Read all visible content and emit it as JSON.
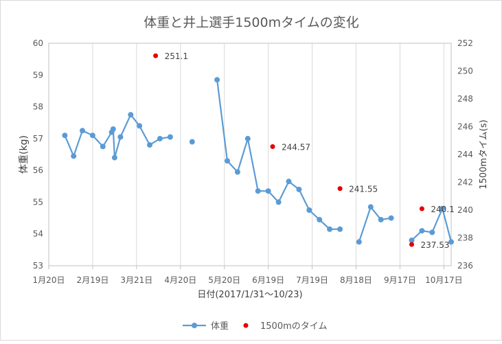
{
  "chart_data": {
    "type": "line",
    "title": "体重と井上選手1500mタイムの変化",
    "xlabel": "日付(2017/1/31～10/23)",
    "ylabel_left": "体重(kg)",
    "ylabel_right": "1500mタイム(s)",
    "x_ticks": [
      "1月20日",
      "2月19日",
      "3月21日",
      "4月20日",
      "5月20日",
      "6月19日",
      "7月19日",
      "8月18日",
      "9月17日",
      "10月17日"
    ],
    "x_tick_dates": [
      "2017-01-20",
      "2017-02-19",
      "2017-03-21",
      "2017-04-20",
      "2017-05-20",
      "2017-06-19",
      "2017-07-19",
      "2017-08-18",
      "2017-09-17",
      "2017-10-17"
    ],
    "xlim": [
      "2017-01-20",
      "2017-10-22"
    ],
    "ylim_left": [
      53,
      60
    ],
    "yticks_left": [
      "53",
      "54",
      "55",
      "56",
      "57",
      "58",
      "59",
      "60"
    ],
    "ylim_right": [
      236,
      252
    ],
    "yticks_right": [
      "236",
      "238",
      "240",
      "242",
      "244",
      "246",
      "248",
      "250",
      "252"
    ],
    "grid": "vertical",
    "legend_position": "bottom",
    "series": [
      {
        "name": "体重",
        "axis": "left",
        "color": "#5b9bd5",
        "style": "line-with-markers",
        "segments": [
          [
            {
              "x": "2017-01-31",
              "y": 57.1
            },
            {
              "x": "2017-02-06",
              "y": 56.45
            },
            {
              "x": "2017-02-12",
              "y": 57.25
            },
            {
              "x": "2017-02-19",
              "y": 57.1
            },
            {
              "x": "2017-02-26",
              "y": 56.75
            },
            {
              "x": "2017-03-04",
              "y": 57.2
            },
            {
              "x": "2017-03-05",
              "y": 57.3
            },
            {
              "x": "2017-03-06",
              "y": 56.4
            },
            {
              "x": "2017-03-10",
              "y": 57.05
            },
            {
              "x": "2017-03-17",
              "y": 57.75
            },
            {
              "x": "2017-03-23",
              "y": 57.4
            },
            {
              "x": "2017-03-30",
              "y": 56.8
            },
            {
              "x": "2017-04-06",
              "y": 57.0
            },
            {
              "x": "2017-04-13",
              "y": 57.05
            }
          ],
          [
            {
              "x": "2017-04-28",
              "y": 56.9
            }
          ],
          [
            {
              "x": "2017-05-15",
              "y": 58.85
            },
            {
              "x": "2017-05-22",
              "y": 56.3
            },
            {
              "x": "2017-05-29",
              "y": 55.95
            },
            {
              "x": "2017-06-05",
              "y": 57.0
            },
            {
              "x": "2017-06-12",
              "y": 55.35
            },
            {
              "x": "2017-06-19",
              "y": 55.35
            },
            {
              "x": "2017-06-26",
              "y": 55.0
            },
            {
              "x": "2017-07-03",
              "y": 55.65
            },
            {
              "x": "2017-07-10",
              "y": 55.4
            },
            {
              "x": "2017-07-17",
              "y": 54.75
            },
            {
              "x": "2017-07-24",
              "y": 54.45
            },
            {
              "x": "2017-07-31",
              "y": 54.15
            },
            {
              "x": "2017-08-07",
              "y": 54.15
            }
          ],
          [
            {
              "x": "2017-08-20",
              "y": 53.75
            },
            {
              "x": "2017-08-28",
              "y": 54.85
            },
            {
              "x": "2017-09-04",
              "y": 54.45
            },
            {
              "x": "2017-09-11",
              "y": 54.5
            }
          ],
          [
            {
              "x": "2017-09-25",
              "y": 53.8
            },
            {
              "x": "2017-10-02",
              "y": 54.1
            },
            {
              "x": "2017-10-09",
              "y": 54.05
            },
            {
              "x": "2017-10-16",
              "y": 54.8
            },
            {
              "x": "2017-10-22",
              "y": 53.75
            }
          ]
        ]
      },
      {
        "name": "1500mのタイム",
        "axis": "right",
        "color": "#e30000",
        "style": "markers",
        "points": [
          {
            "x": "2017-04-03",
            "y": 251.1,
            "label": "251.1"
          },
          {
            "x": "2017-06-22",
            "y": 244.57,
            "label": "244.57"
          },
          {
            "x": "2017-08-07",
            "y": 241.55,
            "label": "241.55"
          },
          {
            "x": "2017-09-25",
            "y": 237.53,
            "label": "237.53"
          },
          {
            "x": "2017-10-02",
            "y": 240.1,
            "label": "240.1"
          }
        ]
      }
    ]
  }
}
